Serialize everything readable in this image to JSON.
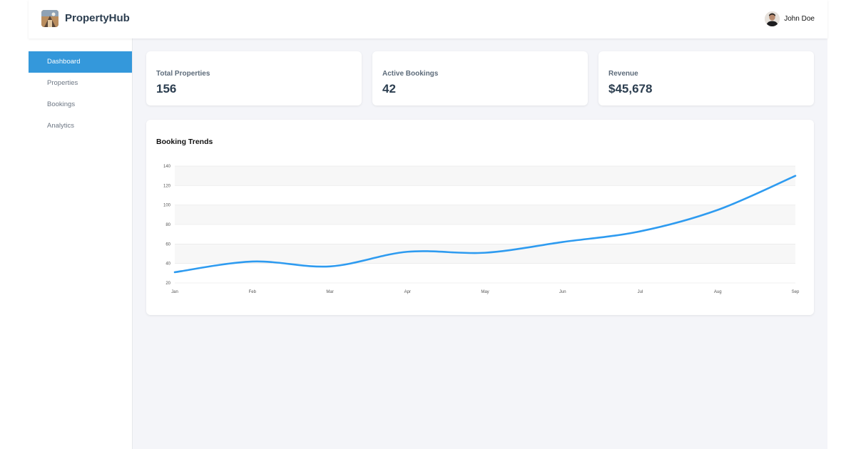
{
  "app": {
    "name": "PropertyHub"
  },
  "user": {
    "name": "John Doe"
  },
  "sidebar": {
    "items": [
      {
        "label": "Dashboard",
        "active": true
      },
      {
        "label": "Properties",
        "active": false
      },
      {
        "label": "Bookings",
        "active": false
      },
      {
        "label": "Analytics",
        "active": false
      }
    ]
  },
  "stats": [
    {
      "label": "Total Properties",
      "value": "156"
    },
    {
      "label": "Active Bookings",
      "value": "42"
    },
    {
      "label": "Revenue",
      "value": "$45,678"
    }
  ],
  "colors": {
    "accent": "#3498db",
    "line": "#2e9bf0"
  },
  "chart_data": {
    "type": "line",
    "title": "Booking Trends",
    "xlabel": "",
    "ylabel": "",
    "x": [
      "Jan",
      "Feb",
      "Mar",
      "Apr",
      "May",
      "Jun",
      "Jul",
      "Aug",
      "Sep"
    ],
    "series": [
      {
        "values": [
          31,
          42,
          37,
          52,
          51,
          62,
          73,
          95,
          130
        ]
      }
    ],
    "yticks": [
      20,
      40,
      60,
      80,
      100,
      120,
      140
    ],
    "ylim": [
      20,
      140
    ],
    "grid": true,
    "legend": "none"
  }
}
